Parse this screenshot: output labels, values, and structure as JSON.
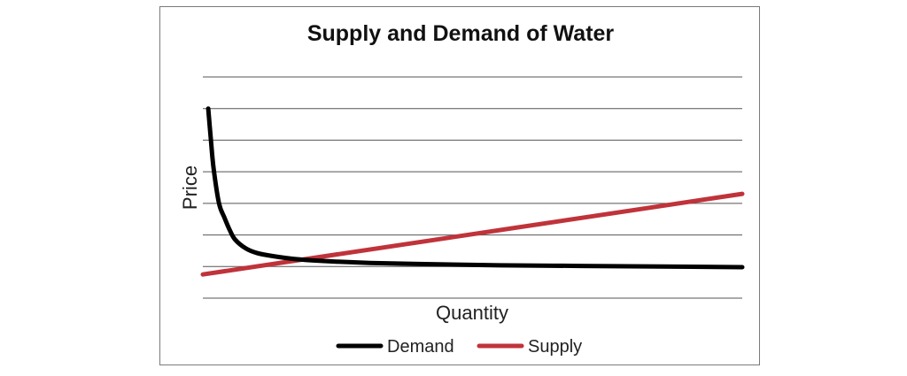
{
  "chart_data": {
    "type": "line",
    "title": "Supply and Demand of Water",
    "xlabel": "Quantity",
    "ylabel": "Price",
    "xlim": [
      0,
      100
    ],
    "ylim": [
      0,
      7
    ],
    "grid": true,
    "x_ticks_labeled": false,
    "y_ticks_labeled": false,
    "legend_position": "bottom",
    "series": [
      {
        "name": "Demand",
        "color": "#000000",
        "x": [
          1,
          1.5,
          2,
          3,
          4,
          5,
          6,
          8,
          10,
          13,
          17,
          22,
          30,
          40,
          55,
          70,
          85,
          100
        ],
        "y": [
          6.0,
          5.0,
          4.1,
          3.0,
          2.55,
          2.15,
          1.85,
          1.57,
          1.43,
          1.33,
          1.24,
          1.18,
          1.12,
          1.08,
          1.04,
          1.02,
          1.0,
          0.98
        ]
      },
      {
        "name": "Supply",
        "color": "#c0333a",
        "x": [
          0,
          100
        ],
        "y": [
          0.75,
          3.3
        ]
      }
    ]
  }
}
